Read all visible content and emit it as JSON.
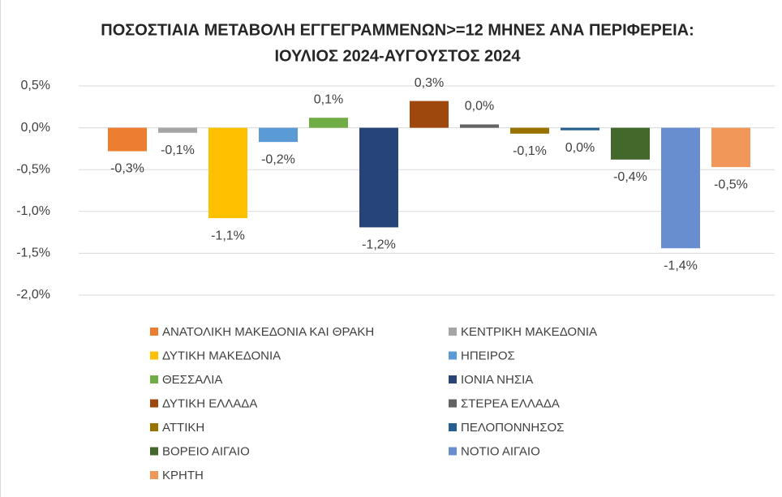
{
  "chart_data": {
    "type": "bar",
    "title": "ΠΟΣΟΣΤΙΑΙΑ ΜΕΤΑΒΟΛΗ ΕΓΓΕΓΡΑΜΜΕΝΩΝ>=12 ΜΗΝΕΣ ΑΝΑ ΠΕΡΙΦΕΡΕΙΑ:",
    "subtitle": "ΙΟΥΛΙΟΣ 2024-ΑΥΓΟΥΣΤΟΣ 2024",
    "ylim": [
      -2,
      0.5
    ],
    "yticks": [
      {
        "value": 0.5,
        "label": "0,5%"
      },
      {
        "value": 0,
        "label": "0,0%"
      },
      {
        "value": -0.5,
        "label": "-0,5%"
      },
      {
        "value": -1,
        "label": "-1,0%"
      },
      {
        "value": -1.5,
        "label": "-1,5%"
      },
      {
        "value": -2,
        "label": "-2,0%"
      }
    ],
    "grid": true,
    "legend": "bottom",
    "series": [
      {
        "name": "ΑΝΑΤΟΛΙΚΗ ΜΑΚΕΔΟΝΙΑ ΚΑΙ ΘΡΑΚΗ",
        "color": "#ed7d31",
        "values": [
          -0.28
        ],
        "value_labels": [
          "-0,3%"
        ]
      },
      {
        "name": "ΚΕΝΤΡΙΚΗ ΜΑΚΕΔΟΝΙΑ",
        "color": "#a5a5a5",
        "values": [
          -0.06
        ],
        "value_labels": [
          "-0,1%"
        ]
      },
      {
        "name": "ΔΥΤΙΚΗ ΜΑΚΕΔΟΝΙΑ",
        "color": "#ffc000",
        "values": [
          -1.08
        ],
        "value_labels": [
          "-1,1%"
        ]
      },
      {
        "name": "ΗΠΕΙΡΟΣ",
        "color": "#5b9bd5",
        "values": [
          -0.17
        ],
        "value_labels": [
          "-0,2%"
        ]
      },
      {
        "name": "ΘΕΣΣΑΛΙΑ",
        "color": "#70ad47",
        "values": [
          0.12
        ],
        "value_labels": [
          "0,1%"
        ]
      },
      {
        "name": "ΙΟΝΙΑ ΝΗΣΙΑ",
        "color": "#264478",
        "values": [
          -1.19
        ],
        "value_labels": [
          "-1,2%"
        ]
      },
      {
        "name": "ΔΥΤΙΚΗ ΕΛΛΑΔΑ",
        "color": "#9e480e",
        "values": [
          0.32
        ],
        "value_labels": [
          "0,3%"
        ]
      },
      {
        "name": "ΣΤΕΡΕΑ ΕΛΛΑΔΑ",
        "color": "#636363",
        "values": [
          0.04
        ],
        "value_labels": [
          "0,0%"
        ]
      },
      {
        "name": "ΑΤΤΙΚΗ",
        "color": "#997300",
        "values": [
          -0.07
        ],
        "value_labels": [
          "-0,1%"
        ]
      },
      {
        "name": "ΠΕΛΟΠΟΝΝΗΣΟΣ",
        "color": "#255e91",
        "values": [
          -0.03
        ],
        "value_labels": [
          "0,0%"
        ]
      },
      {
        "name": "ΒΟΡΕΙΟ ΑΙΓΑΙΟ",
        "color": "#43682b",
        "values": [
          -0.38
        ],
        "value_labels": [
          "-0,4%"
        ]
      },
      {
        "name": "ΝΟΤΙΟ ΑΙΓΑΙΟ",
        "color": "#698ed0",
        "values": [
          -1.44
        ],
        "value_labels": [
          "-1,4%"
        ]
      },
      {
        "name": "ΚΡΗΤΗ",
        "color": "#f1975a",
        "values": [
          -0.47
        ],
        "value_labels": [
          "-0,5%"
        ]
      }
    ]
  }
}
